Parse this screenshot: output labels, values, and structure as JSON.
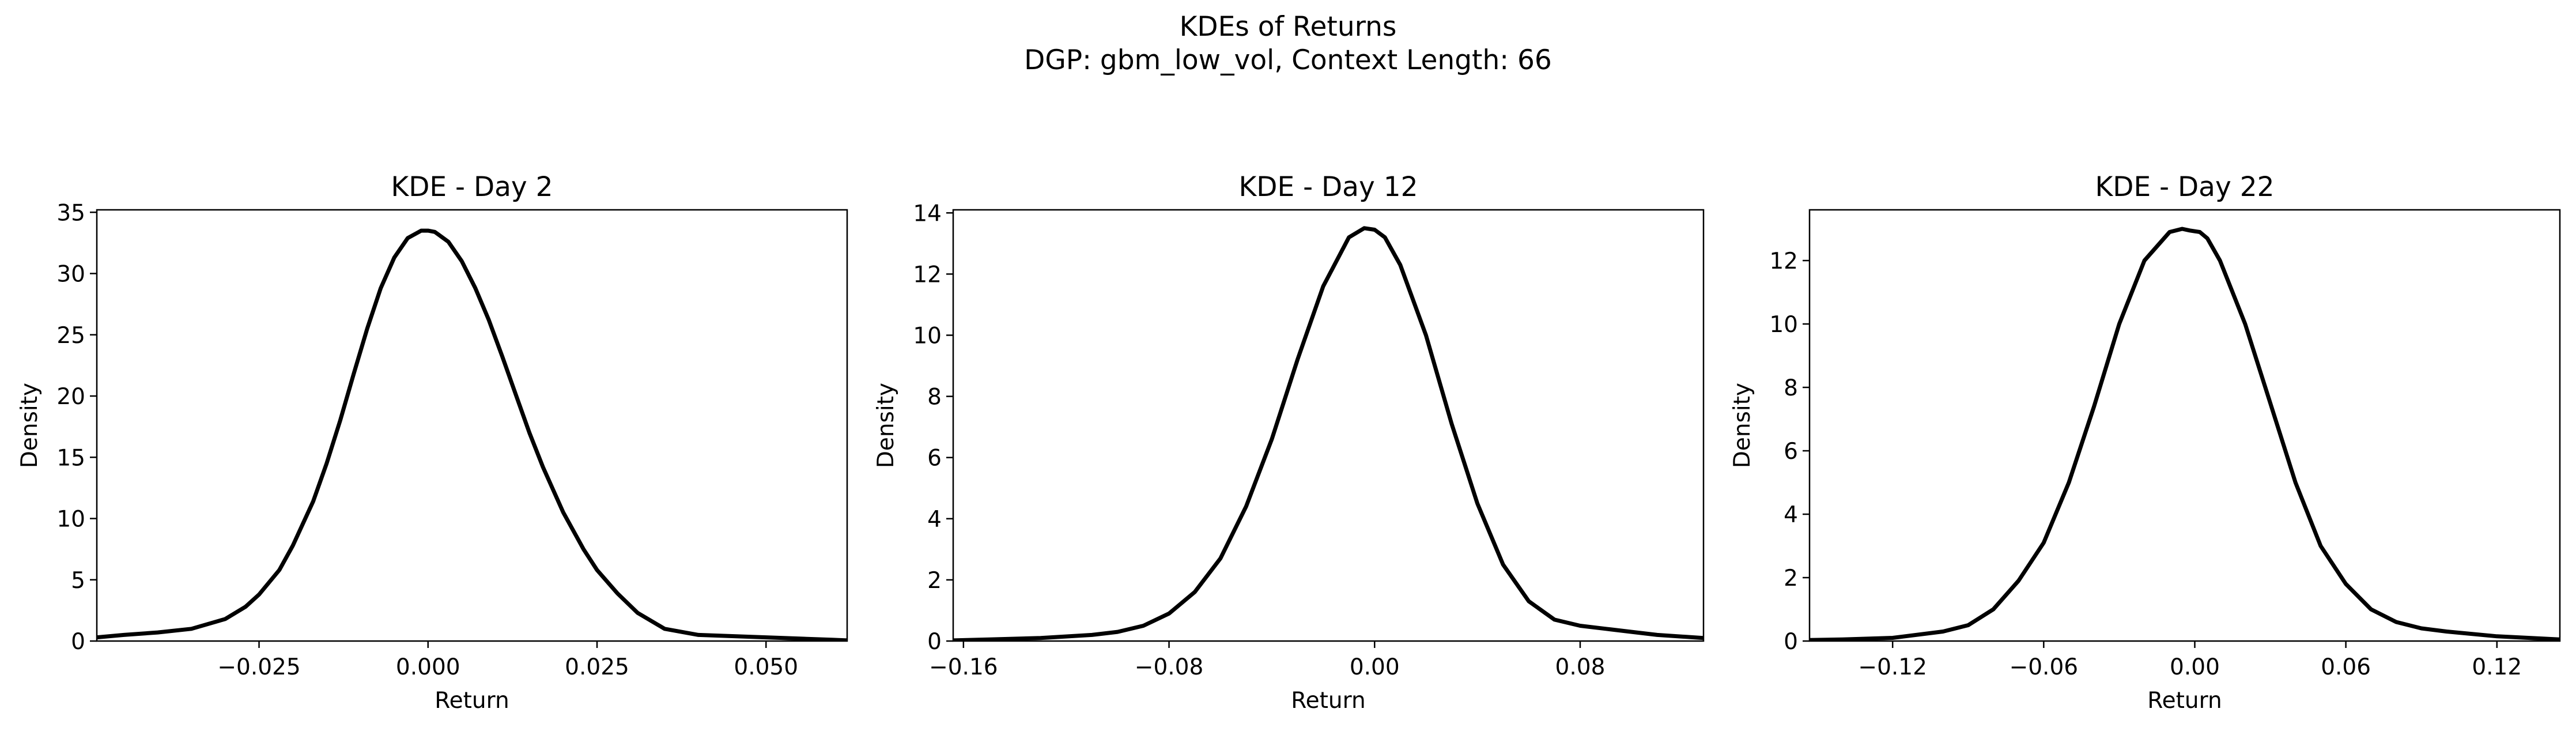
{
  "figure": {
    "title_line1": "KDEs of Returns",
    "title_line2": "DGP: gbm_low_vol, Context Length: 66"
  },
  "style": {
    "line_color": "#000000",
    "axes_color": "#000000",
    "background": "#ffffff"
  },
  "chart_data": [
    {
      "type": "line",
      "title": "KDE - Day 2",
      "xlabel": "Return",
      "ylabel": "Density",
      "xlim": [
        -0.049,
        0.062
      ],
      "ylim": [
        0,
        35.2
      ],
      "xticks": [
        -0.025,
        0.0,
        0.025,
        0.05
      ],
      "xtick_labels": [
        "−0.025",
        "0.000",
        "0.025",
        "0.050"
      ],
      "yticks": [
        0,
        5,
        10,
        15,
        20,
        25,
        30,
        35
      ],
      "ytick_labels": [
        "0",
        "5",
        "10",
        "15",
        "20",
        "25",
        "30",
        "35"
      ],
      "grid": false,
      "series": [
        {
          "x": [
            -0.049,
            -0.045,
            -0.04,
            -0.035,
            -0.03,
            -0.027,
            -0.025,
            -0.022,
            -0.02,
            -0.017,
            -0.015,
            -0.013,
            -0.011,
            -0.009,
            -0.007,
            -0.005,
            -0.003,
            -0.001,
            0.0,
            0.001,
            0.003,
            0.005,
            0.007,
            0.009,
            0.011,
            0.013,
            0.015,
            0.017,
            0.02,
            0.023,
            0.025,
            0.028,
            0.031,
            0.035,
            0.04,
            0.045,
            0.05,
            0.055,
            0.06,
            0.062
          ],
          "y": [
            0.3,
            0.5,
            0.7,
            1.0,
            1.8,
            2.8,
            3.8,
            5.8,
            7.8,
            11.4,
            14.5,
            18.0,
            21.8,
            25.5,
            28.8,
            31.3,
            32.9,
            33.5,
            33.5,
            33.4,
            32.6,
            31.0,
            28.8,
            26.2,
            23.2,
            20.1,
            17.0,
            14.2,
            10.5,
            7.5,
            5.8,
            3.9,
            2.3,
            1.0,
            0.5,
            0.4,
            0.3,
            0.2,
            0.1,
            0.05
          ]
        }
      ]
    },
    {
      "type": "line",
      "title": "KDE - Day 12",
      "xlabel": "Return",
      "ylabel": "Density",
      "xlim": [
        -0.164,
        0.128
      ],
      "ylim": [
        0,
        14.1
      ],
      "xticks": [
        -0.16,
        -0.08,
        0.0,
        0.08
      ],
      "xtick_labels": [
        "−0.16",
        "−0.08",
        "0.00",
        "0.08"
      ],
      "yticks": [
        0,
        2,
        4,
        6,
        8,
        10,
        12,
        14
      ],
      "ytick_labels": [
        "0",
        "2",
        "4",
        "6",
        "8",
        "10",
        "12",
        "14"
      ],
      "grid": false,
      "series": [
        {
          "x": [
            -0.164,
            -0.15,
            -0.13,
            -0.11,
            -0.1,
            -0.09,
            -0.08,
            -0.07,
            -0.06,
            -0.05,
            -0.04,
            -0.03,
            -0.02,
            -0.01,
            -0.004,
            0.0,
            0.004,
            0.01,
            0.02,
            0.03,
            0.04,
            0.05,
            0.06,
            0.07,
            0.08,
            0.09,
            0.1,
            0.11,
            0.128
          ],
          "y": [
            0.02,
            0.05,
            0.1,
            0.2,
            0.3,
            0.5,
            0.9,
            1.6,
            2.7,
            4.4,
            6.6,
            9.2,
            11.6,
            13.2,
            13.5,
            13.45,
            13.2,
            12.3,
            10.0,
            7.1,
            4.5,
            2.5,
            1.3,
            0.7,
            0.5,
            0.4,
            0.3,
            0.2,
            0.1
          ]
        }
      ]
    },
    {
      "type": "line",
      "title": "KDE - Day 22",
      "xlabel": "Return",
      "ylabel": "Density",
      "xlim": [
        -0.153,
        0.145
      ],
      "ylim": [
        0,
        13.6
      ],
      "xticks": [
        -0.12,
        -0.06,
        0.0,
        0.06,
        0.12
      ],
      "xtick_labels": [
        "−0.12",
        "−0.06",
        "0.00",
        "0.06",
        "0.12"
      ],
      "yticks": [
        0,
        2,
        4,
        6,
        8,
        10,
        12
      ],
      "ytick_labels": [
        "0",
        "2",
        "4",
        "6",
        "8",
        "10",
        "12"
      ],
      "grid": false,
      "series": [
        {
          "x": [
            -0.153,
            -0.14,
            -0.12,
            -0.1,
            -0.09,
            -0.08,
            -0.07,
            -0.06,
            -0.05,
            -0.04,
            -0.03,
            -0.02,
            -0.01,
            -0.005,
            -0.002,
            0.002,
            0.005,
            0.01,
            0.02,
            0.03,
            0.04,
            0.05,
            0.06,
            0.07,
            0.08,
            0.09,
            0.1,
            0.12,
            0.145
          ],
          "y": [
            0.03,
            0.05,
            0.1,
            0.3,
            0.5,
            1.0,
            1.9,
            3.1,
            5.0,
            7.4,
            10.0,
            12.0,
            12.9,
            13.0,
            12.95,
            12.9,
            12.7,
            12.0,
            10.0,
            7.5,
            5.0,
            3.0,
            1.8,
            1.0,
            0.6,
            0.4,
            0.3,
            0.15,
            0.05
          ]
        }
      ]
    }
  ]
}
